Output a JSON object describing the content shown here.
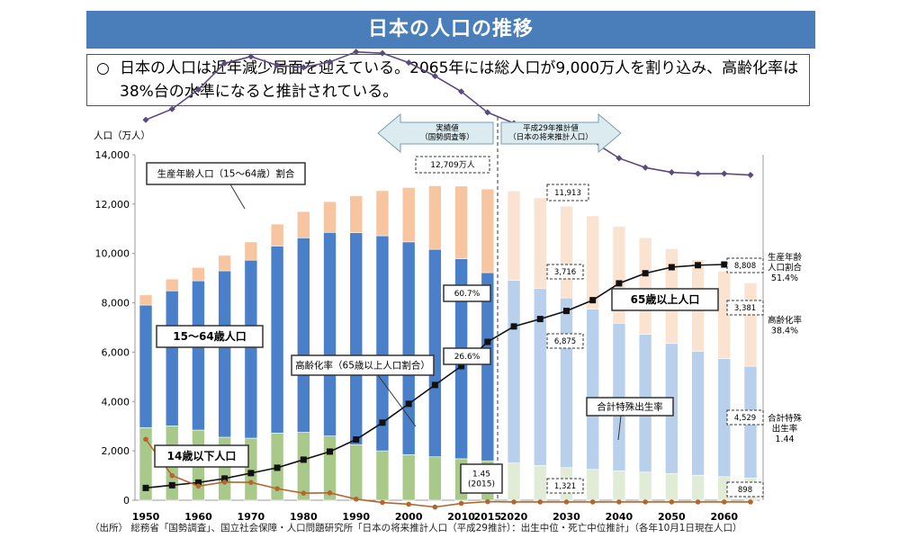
{
  "page": {
    "title": "日本の人口の推移",
    "summary_mark": "○",
    "summary_text": "日本の人口は近年減少局面を迎えている。2065年には総人口が9,000万人を割り込み、高齢化率は38%台の水準になると推計されている。",
    "source": "（出所） 総務省「国勢調査」、国立社会保障・人口問題研究所「日本の将来推計人口（平成29推計）：出生中位・死亡中位推計」（各年10月1日現在人口）"
  },
  "colors": {
    "age_0_14": "#a9c98a",
    "age_15_64": "#4a7fc9",
    "age_65_plus": "#f7c6a1",
    "age_0_14_proj": "#e1ecd6",
    "age_15_64_proj": "#b9d0ec",
    "age_65_plus_proj": "#fbe3d2",
    "working_ratio_line": "#5b4a7c",
    "aging_rate_line": "#111111",
    "fertility_line": "#b5652f",
    "arrow_fill": "#dcebf0",
    "arrow_stroke": "#7a9fb0"
  },
  "chart_data": {
    "type": "bar",
    "stacked": true,
    "ylabel": "人口（万人）",
    "ylim": [
      0,
      14000
    ],
    "yticks": [
      "0",
      "2,000",
      "4,000",
      "6,000",
      "8,000",
      "10,000",
      "12,000",
      "14,000"
    ],
    "ytick_values": [
      0,
      2000,
      4000,
      6000,
      8000,
      10000,
      12000,
      14000
    ],
    "x_tick_labels": [
      "1950",
      "1960",
      "1970",
      "1980",
      "1990",
      "2000",
      "2010",
      "2015",
      "2020",
      "2030",
      "2040",
      "2050",
      "2060"
    ],
    "x_tick_years": [
      1950,
      1960,
      1970,
      1980,
      1990,
      2000,
      2010,
      2015,
      2020,
      2030,
      2040,
      2050,
      2060
    ],
    "years": [
      1950,
      1955,
      1960,
      1965,
      1970,
      1975,
      1980,
      1985,
      1990,
      1995,
      2000,
      2005,
      2010,
      2015,
      2020,
      2025,
      2030,
      2035,
      2040,
      2045,
      2050,
      2055,
      2060,
      2065
    ],
    "projected_from": 2020,
    "series": [
      {
        "name": "14歳以下人口",
        "values": [
          2943,
          3012,
          2843,
          2553,
          2515,
          2722,
          2751,
          2603,
          2249,
          2001,
          1847,
          1759,
          1680,
          1595,
          1507,
          1407,
          1321,
          1246,
          1194,
          1138,
          1077,
          1012,
          951,
          898
        ]
      },
      {
        "name": "15〜64歳人口",
        "values": [
          4966,
          5473,
          6047,
          6744,
          7212,
          7581,
          7883,
          8251,
          8590,
          8716,
          8622,
          8409,
          8103,
          7629,
          7406,
          7170,
          6875,
          6494,
          5978,
          5584,
          5275,
          5028,
          4793,
          4529
        ]
      },
      {
        "name": "65歳以上人口",
        "values": [
          411,
          479,
          540,
          624,
          739,
          887,
          1065,
          1247,
          1493,
          1828,
          2204,
          2576,
          2948,
          3387,
          3619,
          3677,
          3716,
          3782,
          3921,
          3919,
          3841,
          3704,
          3540,
          3381
        ]
      }
    ],
    "lines": [
      {
        "name": "生産年齢人口（15〜64歳）割合",
        "axis": "right",
        "values": [
          59.6,
          61.2,
          64.1,
          68.0,
          69.0,
          67.7,
          67.4,
          68.2,
          69.7,
          69.5,
          68.1,
          66.1,
          63.8,
          60.7,
          59.1,
          58.5,
          57.7,
          56.4,
          53.9,
          52.5,
          51.8,
          51.6,
          51.6,
          51.4
        ]
      },
      {
        "name": "高齢化率（65歳以上人口割合）",
        "axis": "right",
        "values": [
          4.9,
          5.3,
          5.7,
          6.3,
          7.1,
          7.9,
          9.1,
          10.3,
          12.1,
          14.6,
          17.4,
          20.2,
          23.0,
          26.6,
          28.9,
          30.0,
          31.2,
          32.8,
          35.3,
          36.8,
          37.7,
          38.0,
          38.1,
          38.4
        ]
      },
      {
        "name": "合計特殊出生率",
        "axis": "right",
        "values": [
          3.65,
          2.37,
          2.0,
          2.14,
          2.13,
          1.91,
          1.75,
          1.76,
          1.54,
          1.42,
          1.36,
          1.26,
          1.39,
          1.45,
          1.44,
          1.44,
          1.44,
          1.44,
          1.44,
          1.44,
          1.44,
          1.44,
          1.44,
          1.44
        ]
      }
    ],
    "annotations": {
      "actual_arrow": "実績値\n（国勢調査等）",
      "projection_arrow": "平成29年推計値\n（日本の将来推計人口）",
      "total_2015": "12,709万人",
      "working_ratio_2015": "60.7%",
      "aging_rate_2015": "26.6%",
      "fertility_2015": "1.45\n(2015)",
      "total_2030": "11,913",
      "elderly_2030": "3,716",
      "working_2030": "6,875",
      "child_2030": "1,321",
      "total_2065": "8,808",
      "elderly_2065": "3,381",
      "working_2065": "4,529",
      "child_2065": "898",
      "label_working_ratio": "生産年齢人口（15〜64歳）割合",
      "label_age_15_64": "15〜64歳人口",
      "label_aging_rate": "高齢化率（65歳以上人口割合）",
      "label_age_0_14": "14歳以下人口",
      "label_age_65_plus": "65歳以上人口",
      "label_fertility": "合計特殊出生率",
      "right_working_ratio": "生産年齢\n人口割合\n51.4%",
      "right_aging_rate": "高齢化率\n38.4%",
      "right_fertility": "合計特殊\n出生率\n1.44"
    }
  }
}
